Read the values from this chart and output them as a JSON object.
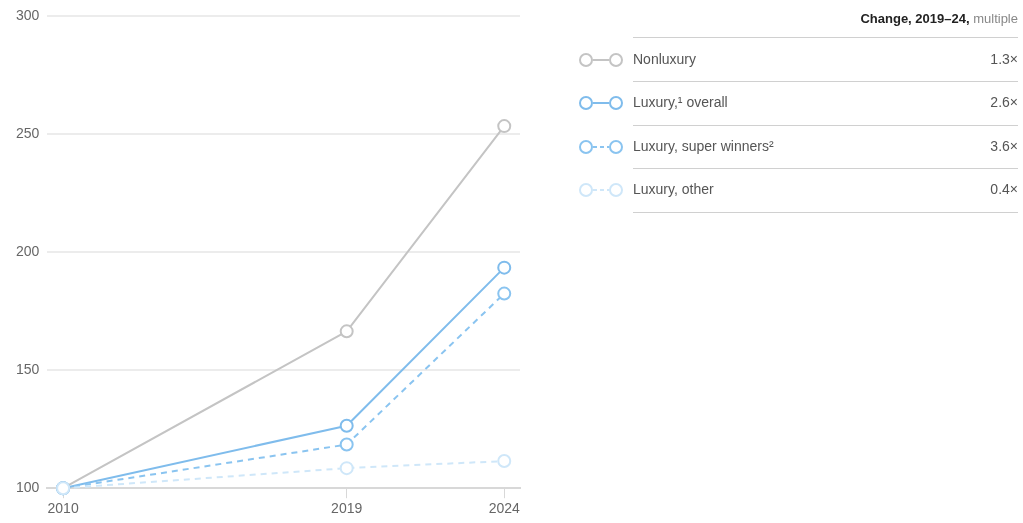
{
  "chart_data": {
    "type": "line",
    "x": [
      2010,
      2019,
      2024
    ],
    "series": [
      {
        "name": "Nonluxury",
        "color": "#c4c4c4",
        "values": [
          100,
          166.5,
          253.5
        ],
        "line_style": "solid"
      },
      {
        "name": "Luxury,¹ overall",
        "color": "#7fbcec",
        "values": [
          100,
          126.5,
          193.5
        ],
        "line_style": "solid"
      },
      {
        "name": "Luxury, super winners²",
        "color": "#8ac4f0",
        "values": [
          100,
          118.5,
          182.5
        ],
        "line_style": "dashed"
      },
      {
        "name": "Luxury, other",
        "color": "#cfe7f9",
        "values": [
          100,
          108.5,
          111.5
        ],
        "line_style": "dashed"
      }
    ],
    "xlim": [
      2009.5,
      2024.5
    ],
    "xticks": [
      2010,
      2019,
      2024
    ],
    "ylim": [
      100,
      300
    ],
    "yticks": [
      100,
      150,
      200,
      250,
      300
    ],
    "grid": "y",
    "marker": "circle",
    "legend": "top right",
    "legend_title": "Change, 2019–24, multiple",
    "annotations": [
      "1.3×",
      "2.6×",
      "3.6×",
      "0.4×"
    ]
  }
}
